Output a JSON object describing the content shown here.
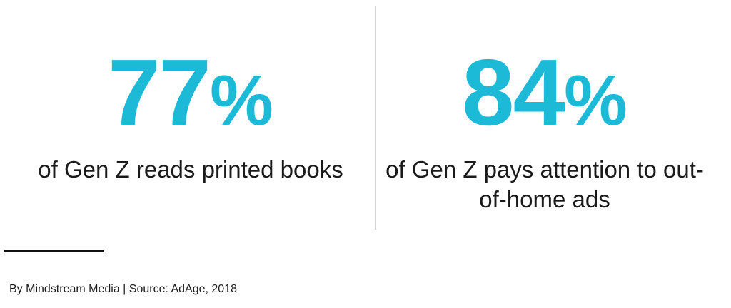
{
  "stats": [
    {
      "value": "77",
      "unit": "%",
      "caption": "of Gen Z reads printed books"
    },
    {
      "value": "84",
      "unit": "%",
      "caption": "of Gen Z pays attention to out-of-home ads"
    }
  ],
  "footer": {
    "text": "By Mindstream Media | Source: AdAge, 2018"
  },
  "colors": {
    "accent": "#1cbad6",
    "text": "#1a1a1a",
    "divider": "#d5d5d5"
  }
}
